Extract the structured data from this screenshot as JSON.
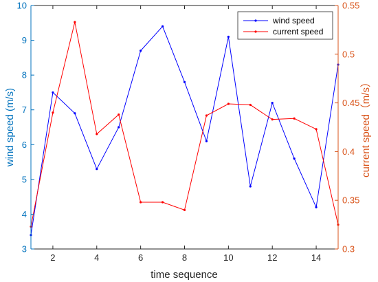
{
  "chart_data": {
    "type": "line",
    "xlabel": "time sequence",
    "xlim": [
      1,
      15
    ],
    "xticks": [
      2,
      4,
      6,
      8,
      10,
      12,
      14
    ],
    "x": [
      1,
      2,
      3,
      4,
      5,
      6,
      7,
      8,
      9,
      10,
      11,
      12,
      13,
      14,
      15
    ],
    "grid": false,
    "legend_position": "top-right",
    "y_left": {
      "label": "wind speed  (m/s)",
      "lim": [
        3,
        10
      ],
      "ticks": [
        3,
        4,
        5,
        6,
        7,
        8,
        9,
        10
      ],
      "color": "#0072BD"
    },
    "y_right": {
      "label": "current speed（m/s）",
      "lim": [
        0.3,
        0.55
      ],
      "ticks": [
        0.3,
        0.35,
        0.4,
        0.45,
        0.5,
        0.55
      ],
      "color": "#D95319"
    },
    "series": [
      {
        "name": "wind speed",
        "axis": "left",
        "color": "#0000FF",
        "values": [
          3.4,
          7.5,
          6.9,
          5.3,
          6.5,
          8.7,
          9.4,
          7.8,
          6.1,
          9.1,
          4.8,
          7.2,
          5.6,
          4.2,
          8.3
        ]
      },
      {
        "name": "current speed",
        "axis": "right",
        "color": "#FF0000",
        "values": [
          0.323,
          0.44,
          0.533,
          0.418,
          0.438,
          0.348,
          0.348,
          0.34,
          0.437,
          0.449,
          0.448,
          0.433,
          0.434,
          0.423,
          0.325
        ]
      }
    ]
  }
}
